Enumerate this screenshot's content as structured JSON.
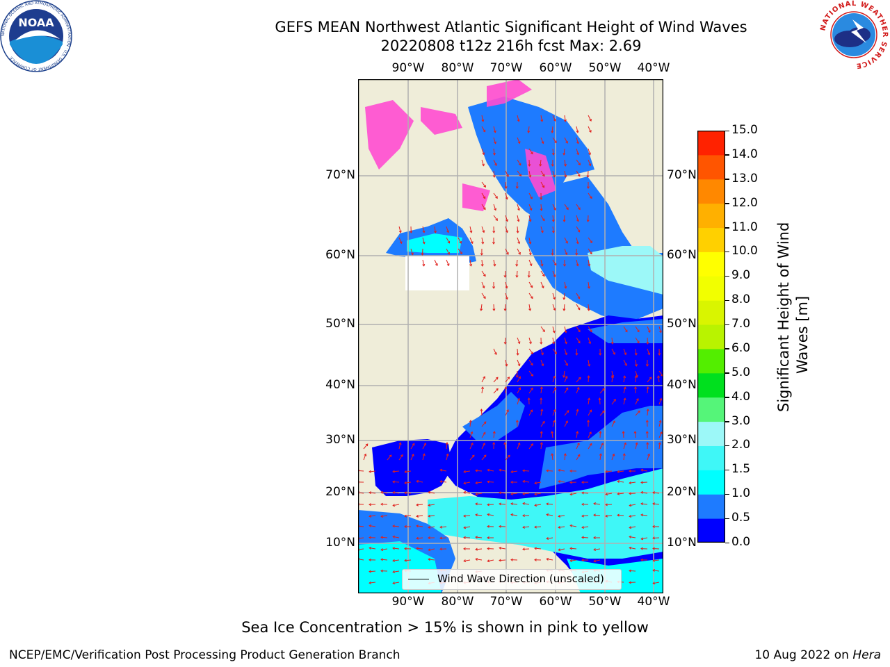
{
  "title": {
    "line1": "GEFS MEAN Northwest Atlantic Significant Height of Wind Waves",
    "line2": "20220808 t12z 216h fcst   Max: 2.69"
  },
  "map": {
    "lon_ticks": [
      "90°W",
      "80°W",
      "70°W",
      "60°W",
      "50°W",
      "40°W"
    ],
    "lat_ticks": [
      "70°N",
      "60°N",
      "50°N",
      "40°N",
      "30°N",
      "20°N",
      "10°N"
    ],
    "land_color": "#efedd9",
    "legend": "Wind Wave Direction (unscaled)",
    "arrow_color": "#e0201c"
  },
  "colorbar": {
    "label": "Significant Height of Wind Waves [m]",
    "label_line1": "Significant Height of Wind",
    "label_line2": "Waves [m]",
    "ticks": [
      "0.0",
      "0.5",
      "1.0",
      "1.5",
      "2.0",
      "3.0",
      "4.0",
      "5.0",
      "6.0",
      "7.0",
      "8.0",
      "9.0",
      "10.0",
      "11.0",
      "12.0",
      "13.0",
      "14.0",
      "15.0"
    ],
    "colors": [
      "#0000ff",
      "#1e7bff",
      "#00ffff",
      "#3ff7f7",
      "#9cf8f8",
      "#55f579",
      "#00e01e",
      "#53ee00",
      "#b9f300",
      "#d9f500",
      "#f2ff00",
      "#ffff00",
      "#ffd000",
      "#ffb000",
      "#ff8800",
      "#ff5500",
      "#ff2200"
    ]
  },
  "logos": {
    "noaa_text": "NOAA",
    "noaa_ring": "NATIONAL OCEANIC AND ATMOSPHERIC ADMINISTRATION · U.S. DEPARTMENT OF COMMERCE",
    "nws_ring": "NATIONAL WEATHER SERVICE"
  },
  "caption": "Sea Ice Concentration > 15% is shown in pink to yellow",
  "footer": {
    "left": "NCEP/EMC/Verification Post Processing Product Generation Branch",
    "right_prefix": "10 Aug 2022 on ",
    "right_host": "Hera"
  }
}
